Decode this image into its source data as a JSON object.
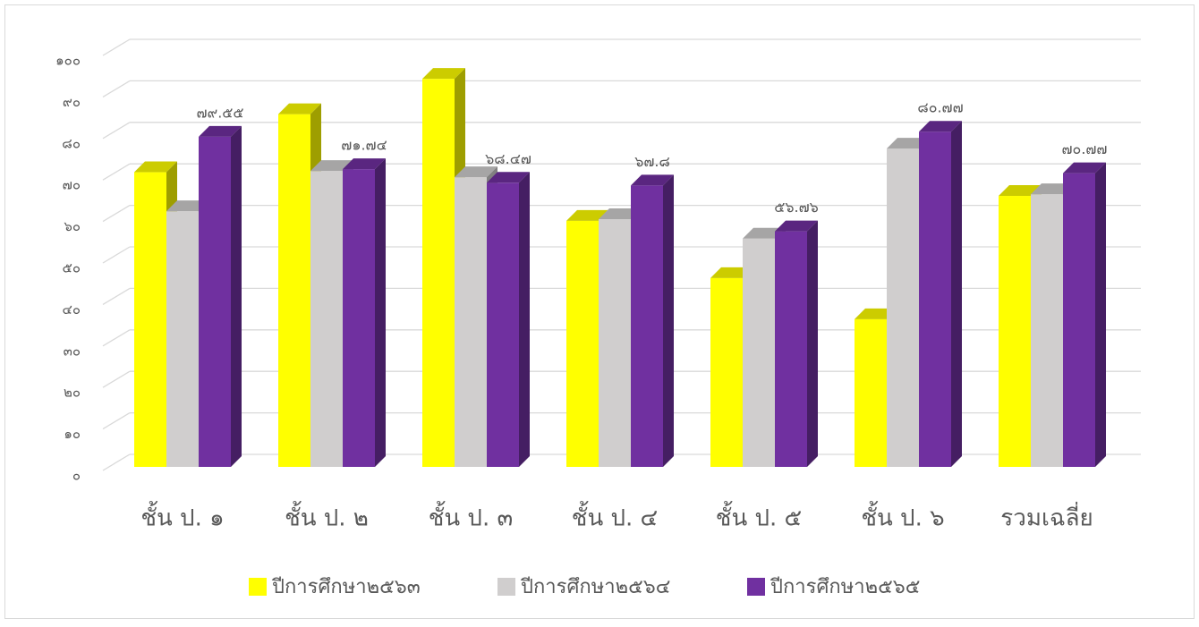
{
  "chart_data": {
    "type": "bar3d",
    "categories": [
      "ชั้น ป. ๑",
      "ชั้น ป. ๒",
      "ชั้น ป. ๓",
      "ชั้น ป. ๔",
      "ชั้น ป. ๕",
      "ชั้น ป. ๖",
      "รวมเฉลี่ย"
    ],
    "series": [
      {
        "name": "ปีการศึกษา๒๕๖๓",
        "color": "#ffff00",
        "values": [
          71,
          85,
          93.5,
          59.3,
          45.5,
          35.6,
          65.3
        ]
      },
      {
        "name": "ปีการศึกษา๒๕๖๔",
        "color": "#d0cece",
        "values": [
          61.6,
          71.3,
          69.8,
          59.7,
          55,
          76.7,
          65.7
        ]
      },
      {
        "name": "ปีการศึกษา๒๕๖๕",
        "color": "#7030a0",
        "values": [
          79.55,
          71.74,
          68.47,
          67.8,
          56.76,
          80.77,
          70.77
        ],
        "value_labels": [
          "๗๙.๕๕",
          "๗๑.๗๔",
          "๖๘.๔๗",
          "๖๗.๘",
          "๕๖.๗๖",
          "๘๐.๗๗",
          "๗๐.๗๗"
        ]
      }
    ],
    "ylim": [
      0,
      100
    ],
    "yticks": [
      {
        "value": 0,
        "label": "๐"
      },
      {
        "value": 10,
        "label": "๑๐"
      },
      {
        "value": 20,
        "label": "๒๐"
      },
      {
        "value": 30,
        "label": "๓๐"
      },
      {
        "value": 40,
        "label": "๔๐"
      },
      {
        "value": 50,
        "label": "๕๐"
      },
      {
        "value": 60,
        "label": "๖๐"
      },
      {
        "value": 70,
        "label": "๗๐"
      },
      {
        "value": 80,
        "label": "๘๐"
      },
      {
        "value": 90,
        "label": "๙๐"
      },
      {
        "value": 100,
        "label": "๑๐๐"
      }
    ],
    "grid": true,
    "legend": "bottom"
  }
}
